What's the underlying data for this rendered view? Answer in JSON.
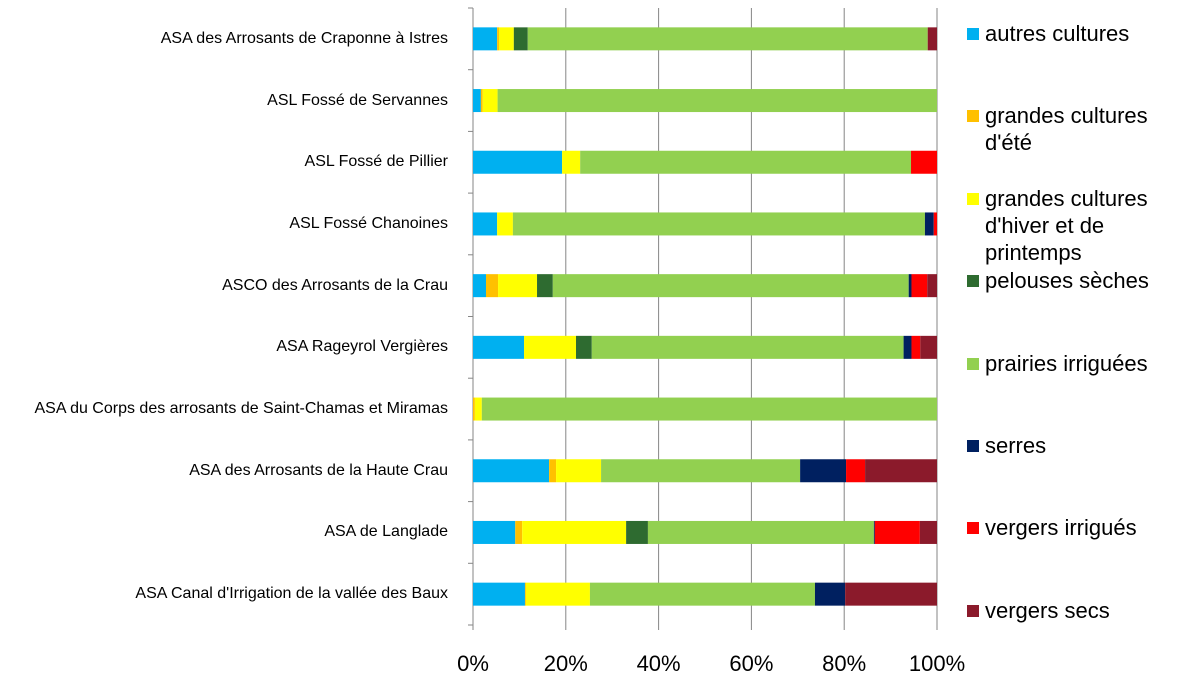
{
  "chart_data": {
    "type": "stacked_barh",
    "categories": [
      "ASA des Arrosants de Craponne à Istres",
      "ASL Fossé de Servannes",
      "ASL Fossé de Pillier",
      "ASL Fossé Chanoines",
      "ASCO des Arrosants de la Crau",
      "ASA Rageyrol Vergières",
      "ASA du Corps des arrosants de Saint-Chamas et Miramas",
      "ASA des Arrosants de la Haute Crau",
      "ASA de Langlade",
      "ASA Canal d'Irrigation de la vallée des Baux"
    ],
    "series": [
      {
        "name": "autres cultures",
        "color": "#00b0f0",
        "values": [
          5.2,
          1.7,
          19.2,
          5.2,
          2.8,
          11.0,
          0,
          16.4,
          9.1,
          11.2
        ]
      },
      {
        "name": "grandes cultures d'été",
        "color": "#ffc000",
        "values": [
          0.4,
          0.4,
          0,
          0,
          2.6,
          0,
          0.4,
          1.5,
          1.5,
          0.2
        ]
      },
      {
        "name": "grandes cultures d'hiver et de printemps",
        "color": "#ffff00",
        "values": [
          3.2,
          3.2,
          3.9,
          3.4,
          8.4,
          11.2,
          1.5,
          9.7,
          22.4,
          13.8
        ]
      },
      {
        "name": "pelouses sèches",
        "color": "#2e6b30",
        "values": [
          3.0,
          0,
          0,
          0,
          3.4,
          3.4,
          0,
          0,
          4.7,
          0
        ]
      },
      {
        "name": "prairies irriguées",
        "color": "#92d050",
        "values": [
          86.2,
          94.7,
          71.3,
          88.8,
          76.7,
          67.2,
          98.1,
          42.9,
          48.7,
          48.5
        ]
      },
      {
        "name": "serres",
        "color": "#002060",
        "values": [
          0,
          0,
          0,
          1.9,
          0.6,
          1.7,
          0,
          9.9,
          0.2,
          6.5
        ]
      },
      {
        "name": "vergers irrigués",
        "color": "#ff0000",
        "values": [
          0,
          0,
          5.6,
          0.7,
          3.4,
          1.9,
          0,
          4.1,
          9.7,
          0
        ]
      },
      {
        "name": "vergers secs",
        "color": "#8b1a2b",
        "values": [
          2.0,
          0,
          0,
          0,
          2.1,
          3.6,
          0,
          15.5,
          3.7,
          19.8
        ]
      }
    ],
    "xlim": [
      0,
      100
    ],
    "xticks": [
      {
        "value": 0,
        "label": "0%"
      },
      {
        "value": 20,
        "label": "20%"
      },
      {
        "value": 40,
        "label": "40%"
      },
      {
        "value": 60,
        "label": "60%"
      },
      {
        "value": 80,
        "label": "80%"
      },
      {
        "value": 100,
        "label": "100%"
      }
    ],
    "grid": true,
    "legend": "right"
  }
}
